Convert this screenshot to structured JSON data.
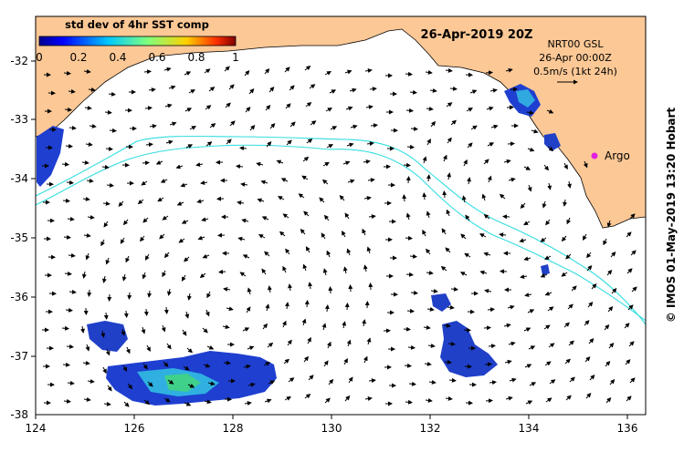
{
  "map": {
    "title": "26-Apr-2019 20Z",
    "colorbar": {
      "label": "std dev of 4hr SST comp",
      "ticks": [
        "0",
        "0.2",
        "0.4",
        "0.6",
        "0.8",
        "1"
      ]
    },
    "legend": {
      "line1": "NRT00 GSL",
      "line2": "26-Apr 00:00Z",
      "line3": "0.5m/s (1kt 24h)"
    },
    "argo_label": "Argo",
    "credit": "© IMOS 01-May-2019 13:20 Hobart",
    "x_ticks": [
      "124",
      "126",
      "128",
      "130",
      "132",
      "134",
      "136"
    ],
    "y_ticks": [
      "-32",
      "-33",
      "-34",
      "-35",
      "-36",
      "-37",
      "-38"
    ],
    "colors": {
      "land": "#fcc896",
      "contour": "#33dde0",
      "argo": "#e020e0"
    }
  }
}
